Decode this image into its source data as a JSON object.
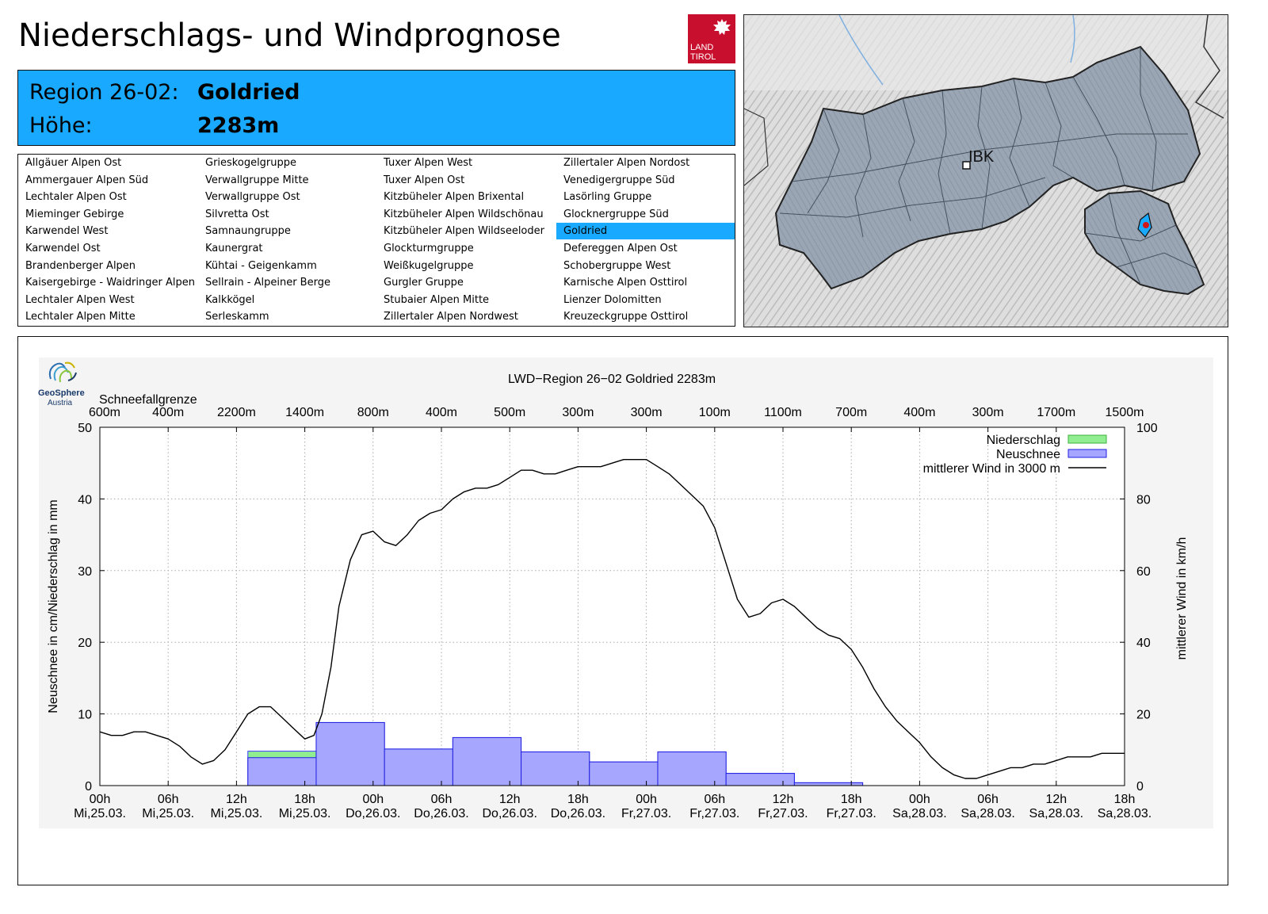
{
  "header": {
    "title": "Niederschlags- und Windprognose",
    "logo_line1": "LAND",
    "logo_line2": "TIROL",
    "region_label": "Region 26-02:",
    "region_name": "Goldried",
    "height_label": "Höhe:",
    "height_value": "2283m"
  },
  "regions": {
    "selected": "Goldried",
    "columns": [
      [
        "Allgäuer Alpen Ost",
        "Ammergauer Alpen Süd",
        "Lechtaler Alpen Ost",
        "Mieminger Gebirge",
        "Karwendel West",
        "Karwendel Ost",
        "Brandenberger Alpen",
        "Kaisergebirge - Waidringer Alpen",
        "Lechtaler Alpen West",
        "Lechtaler Alpen Mitte"
      ],
      [
        "Grieskogelgruppe",
        "Verwallgruppe Mitte",
        "Verwallgruppe Ost",
        "Silvretta Ost",
        "Samnaungruppe",
        "Kaunergrat",
        "Kühtai - Geigenkamm",
        "Sellrain - Alpeiner Berge",
        "Kalkkögel",
        "Serleskamm"
      ],
      [
        "Tuxer Alpen West",
        "Tuxer Alpen Ost",
        "Kitzbüheler Alpen Brixental",
        "Kitzbüheler Alpen Wildschönau",
        "Kitzbüheler Alpen Wildseeloder",
        "Glockturmgruppe",
        "Weißkugelgruppe",
        "Gurgler Gruppe",
        "Stubaier Alpen Mitte",
        "Zillertaler Alpen Nordwest"
      ],
      [
        "Zillertaler Alpen Nordost",
        "Venedigergruppe Süd",
        "Lasörling Gruppe",
        "Glocknergruppe Süd",
        "Goldried",
        "Defereggen Alpen Ost",
        "Schobergruppe West",
        "Karnische Alpen Osttirol",
        "Lienzer Dolomitten",
        "Kreuzeckgruppe Osttirol"
      ]
    ]
  },
  "map": {
    "city_label": "IBK"
  },
  "provider": {
    "name": "GeoSphere",
    "country": "Austria"
  },
  "chart_data": {
    "type": "bar",
    "title": "LWD−Region 26−02 Goldried 2283m",
    "top_axis_label": "Schneefallgrenze",
    "snowline_labels": [
      "600m",
      "400m",
      "2200m",
      "1400m",
      "800m",
      "400m",
      "500m",
      "300m",
      "300m",
      "100m",
      "1100m",
      "700m",
      "400m",
      "300m",
      "1700m",
      "1500m"
    ],
    "ylabel": "Neuschnee in cm/Niederschlag in mm",
    "ylabel_right": "mittlerer Wind in km/h",
    "ylim": [
      0,
      50
    ],
    "ylim_right": [
      0,
      100
    ],
    "yticks": [
      "0",
      "10",
      "20",
      "30",
      "40",
      "50"
    ],
    "yticks_right": [
      "0",
      "20",
      "40",
      "60",
      "80",
      "100"
    ],
    "x_hours_range": [
      0,
      90
    ],
    "x_tick_labels": [
      [
        "00h",
        "Mi,25.03."
      ],
      [
        "06h",
        "Mi,25.03."
      ],
      [
        "12h",
        "Mi,25.03."
      ],
      [
        "18h",
        "Mi,25.03."
      ],
      [
        "00h",
        "Do,26.03."
      ],
      [
        "06h",
        "Do,26.03."
      ],
      [
        "12h",
        "Do,26.03."
      ],
      [
        "18h",
        "Do,26.03."
      ],
      [
        "00h",
        "Fr,27.03."
      ],
      [
        "06h",
        "Fr,27.03."
      ],
      [
        "12h",
        "Fr,27.03."
      ],
      [
        "18h",
        "Fr,27.03."
      ],
      [
        "00h",
        "Sa,28.03."
      ],
      [
        "06h",
        "Sa,28.03."
      ],
      [
        "12h",
        "Sa,28.03."
      ],
      [
        "18h",
        "Sa,28.03."
      ]
    ],
    "grid": true,
    "legend_position": "top-right",
    "series": [
      {
        "name": "Niederschlag",
        "type": "bar",
        "color": "#90ee90",
        "bins_start_hour": [
          13,
          19,
          25,
          31,
          37,
          43,
          49,
          55,
          61,
          67
        ],
        "values": [
          4.8,
          8.8,
          5.1,
          6.7,
          4.7,
          3.3,
          4.7,
          1.7,
          0.4,
          0
        ]
      },
      {
        "name": "Neuschnee",
        "type": "bar",
        "color": "#a6a6ff",
        "bins_start_hour": [
          13,
          19,
          25,
          31,
          37,
          43,
          49,
          55,
          61,
          67
        ],
        "values": [
          3.9,
          8.8,
          5.1,
          6.7,
          4.7,
          3.3,
          4.7,
          1.7,
          0.4,
          0
        ]
      },
      {
        "name": "mittlerer Wind in 3000 m",
        "type": "line",
        "color": "#000000",
        "x_hours": [
          0,
          1,
          2,
          3,
          4,
          5,
          6,
          7,
          8,
          9,
          10,
          11,
          12,
          13,
          14,
          15,
          16,
          17,
          18,
          18.8,
          19.5,
          20.3,
          21,
          22,
          23,
          24,
          25,
          26,
          27,
          28,
          29,
          30,
          31,
          32,
          33,
          34,
          35,
          36,
          37,
          38,
          39,
          40,
          41,
          42,
          43,
          44,
          45,
          46,
          47,
          48,
          49,
          50,
          51,
          52,
          53,
          54,
          55,
          56,
          57,
          58,
          59,
          60,
          61,
          62,
          63,
          64,
          65,
          66,
          67,
          68,
          69,
          70,
          71,
          72,
          73,
          74,
          75,
          76,
          77,
          78,
          79,
          80,
          81,
          82,
          83,
          84,
          85,
          86,
          87,
          88,
          89,
          90
        ],
        "values": [
          15,
          14,
          14,
          15,
          15,
          14,
          13,
          11,
          8,
          6,
          7,
          10,
          15,
          20,
          22,
          22,
          19,
          16,
          13,
          14,
          20,
          33,
          50,
          63,
          70,
          71,
          68,
          67,
          70,
          74,
          76,
          77,
          80,
          82,
          83,
          83,
          84,
          86,
          88,
          88,
          87,
          87,
          88,
          89,
          89,
          89,
          90,
          91,
          91,
          91,
          89,
          87,
          84,
          81,
          78,
          72,
          62,
          52,
          47,
          48,
          51,
          52,
          50,
          47,
          44,
          42,
          41,
          38,
          33,
          27,
          22,
          18,
          15,
          12,
          8,
          5,
          3,
          2,
          2,
          3,
          4,
          5,
          5,
          6,
          6,
          7,
          8,
          8,
          8,
          9,
          9,
          9
        ]
      }
    ]
  }
}
